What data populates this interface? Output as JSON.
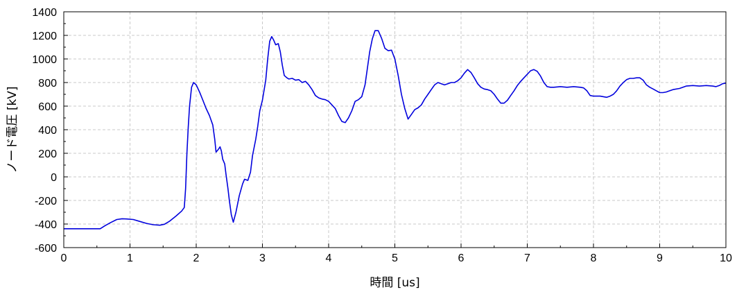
{
  "chart_data": {
    "type": "line",
    "title": "",
    "xlabel": "時間 [us]",
    "ylabel": "ノード電圧 [kV]",
    "xlim": [
      0,
      10
    ],
    "ylim": [
      -600,
      1400
    ],
    "x_ticks": [
      0,
      1,
      2,
      3,
      4,
      5,
      6,
      7,
      8,
      9,
      10
    ],
    "y_ticks": [
      -600,
      -400,
      -200,
      0,
      200,
      400,
      600,
      800,
      1000,
      1200,
      1400
    ],
    "grid": true,
    "legend": "none",
    "line_color": "#0000dd",
    "series": [
      {
        "points": [
          [
            0.0,
            -440
          ],
          [
            0.3,
            -440
          ],
          [
            0.55,
            -440
          ],
          [
            0.62,
            -415
          ],
          [
            0.7,
            -390
          ],
          [
            0.8,
            -362
          ],
          [
            0.88,
            -355
          ],
          [
            0.95,
            -357
          ],
          [
            1.05,
            -362
          ],
          [
            1.15,
            -378
          ],
          [
            1.25,
            -395
          ],
          [
            1.35,
            -406
          ],
          [
            1.45,
            -410
          ],
          [
            1.52,
            -402
          ],
          [
            1.6,
            -375
          ],
          [
            1.7,
            -330
          ],
          [
            1.78,
            -290
          ],
          [
            1.82,
            -260
          ],
          [
            1.84,
            -100
          ],
          [
            1.86,
            200
          ],
          [
            1.88,
            420
          ],
          [
            1.9,
            600
          ],
          [
            1.93,
            760
          ],
          [
            1.96,
            800
          ],
          [
            2.0,
            780
          ],
          [
            2.05,
            720
          ],
          [
            2.1,
            650
          ],
          [
            2.15,
            580
          ],
          [
            2.2,
            520
          ],
          [
            2.25,
            440
          ],
          [
            2.28,
            320
          ],
          [
            2.3,
            210
          ],
          [
            2.33,
            230
          ],
          [
            2.36,
            255
          ],
          [
            2.38,
            220
          ],
          [
            2.4,
            150
          ],
          [
            2.43,
            110
          ],
          [
            2.45,
            20
          ],
          [
            2.48,
            -100
          ],
          [
            2.5,
            -200
          ],
          [
            2.53,
            -320
          ],
          [
            2.56,
            -385
          ],
          [
            2.6,
            -300
          ],
          [
            2.65,
            -160
          ],
          [
            2.7,
            -60
          ],
          [
            2.73,
            -20
          ],
          [
            2.78,
            -30
          ],
          [
            2.82,
            40
          ],
          [
            2.85,
            180
          ],
          [
            2.9,
            320
          ],
          [
            2.93,
            430
          ],
          [
            2.96,
            560
          ],
          [
            3.0,
            650
          ],
          [
            3.05,
            820
          ],
          [
            3.08,
            1000
          ],
          [
            3.11,
            1150
          ],
          [
            3.14,
            1190
          ],
          [
            3.17,
            1160
          ],
          [
            3.2,
            1120
          ],
          [
            3.24,
            1130
          ],
          [
            3.27,
            1060
          ],
          [
            3.3,
            950
          ],
          [
            3.33,
            860
          ],
          [
            3.37,
            840
          ],
          [
            3.4,
            830
          ],
          [
            3.45,
            835
          ],
          [
            3.5,
            820
          ],
          [
            3.55,
            825
          ],
          [
            3.6,
            800
          ],
          [
            3.65,
            810
          ],
          [
            3.7,
            780
          ],
          [
            3.75,
            740
          ],
          [
            3.8,
            690
          ],
          [
            3.85,
            670
          ],
          [
            3.9,
            660
          ],
          [
            3.95,
            655
          ],
          [
            4.0,
            640
          ],
          [
            4.05,
            610
          ],
          [
            4.1,
            580
          ],
          [
            4.15,
            520
          ],
          [
            4.2,
            470
          ],
          [
            4.25,
            460
          ],
          [
            4.3,
            500
          ],
          [
            4.35,
            560
          ],
          [
            4.4,
            640
          ],
          [
            4.45,
            655
          ],
          [
            4.5,
            680
          ],
          [
            4.55,
            780
          ],
          [
            4.58,
            900
          ],
          [
            4.62,
            1060
          ],
          [
            4.66,
            1170
          ],
          [
            4.7,
            1240
          ],
          [
            4.75,
            1240
          ],
          [
            4.8,
            1175
          ],
          [
            4.85,
            1090
          ],
          [
            4.9,
            1070
          ],
          [
            4.95,
            1075
          ],
          [
            5.0,
            1000
          ],
          [
            5.05,
            860
          ],
          [
            5.1,
            700
          ],
          [
            5.15,
            580
          ],
          [
            5.2,
            490
          ],
          [
            5.25,
            530
          ],
          [
            5.3,
            570
          ],
          [
            5.35,
            585
          ],
          [
            5.4,
            610
          ],
          [
            5.45,
            660
          ],
          [
            5.5,
            700
          ],
          [
            5.55,
            740
          ],
          [
            5.6,
            780
          ],
          [
            5.65,
            800
          ],
          [
            5.7,
            790
          ],
          [
            5.75,
            780
          ],
          [
            5.8,
            790
          ],
          [
            5.85,
            800
          ],
          [
            5.9,
            800
          ],
          [
            5.95,
            815
          ],
          [
            6.0,
            840
          ],
          [
            6.05,
            880
          ],
          [
            6.1,
            910
          ],
          [
            6.15,
            885
          ],
          [
            6.2,
            840
          ],
          [
            6.25,
            790
          ],
          [
            6.3,
            760
          ],
          [
            6.35,
            745
          ],
          [
            6.4,
            740
          ],
          [
            6.45,
            730
          ],
          [
            6.5,
            700
          ],
          [
            6.55,
            660
          ],
          [
            6.6,
            625
          ],
          [
            6.65,
            625
          ],
          [
            6.7,
            650
          ],
          [
            6.75,
            690
          ],
          [
            6.8,
            730
          ],
          [
            6.85,
            775
          ],
          [
            6.9,
            810
          ],
          [
            6.95,
            840
          ],
          [
            7.0,
            870
          ],
          [
            7.05,
            900
          ],
          [
            7.1,
            910
          ],
          [
            7.15,
            895
          ],
          [
            7.2,
            855
          ],
          [
            7.25,
            800
          ],
          [
            7.3,
            765
          ],
          [
            7.35,
            760
          ],
          [
            7.4,
            760
          ],
          [
            7.5,
            765
          ],
          [
            7.6,
            760
          ],
          [
            7.7,
            765
          ],
          [
            7.8,
            760
          ],
          [
            7.85,
            755
          ],
          [
            7.9,
            730
          ],
          [
            7.95,
            690
          ],
          [
            8.0,
            685
          ],
          [
            8.1,
            685
          ],
          [
            8.15,
            680
          ],
          [
            8.2,
            675
          ],
          [
            8.25,
            685
          ],
          [
            8.3,
            700
          ],
          [
            8.35,
            730
          ],
          [
            8.4,
            770
          ],
          [
            8.45,
            800
          ],
          [
            8.5,
            825
          ],
          [
            8.55,
            835
          ],
          [
            8.6,
            835
          ],
          [
            8.65,
            840
          ],
          [
            8.7,
            840
          ],
          [
            8.75,
            820
          ],
          [
            8.8,
            780
          ],
          [
            8.85,
            760
          ],
          [
            8.9,
            745
          ],
          [
            8.95,
            730
          ],
          [
            9.0,
            715
          ],
          [
            9.05,
            715
          ],
          [
            9.1,
            720
          ],
          [
            9.15,
            730
          ],
          [
            9.2,
            740
          ],
          [
            9.3,
            750
          ],
          [
            9.4,
            770
          ],
          [
            9.5,
            775
          ],
          [
            9.6,
            770
          ],
          [
            9.7,
            775
          ],
          [
            9.8,
            770
          ],
          [
            9.85,
            765
          ],
          [
            9.9,
            775
          ],
          [
            9.95,
            790
          ],
          [
            10.0,
            795
          ]
        ]
      }
    ]
  }
}
